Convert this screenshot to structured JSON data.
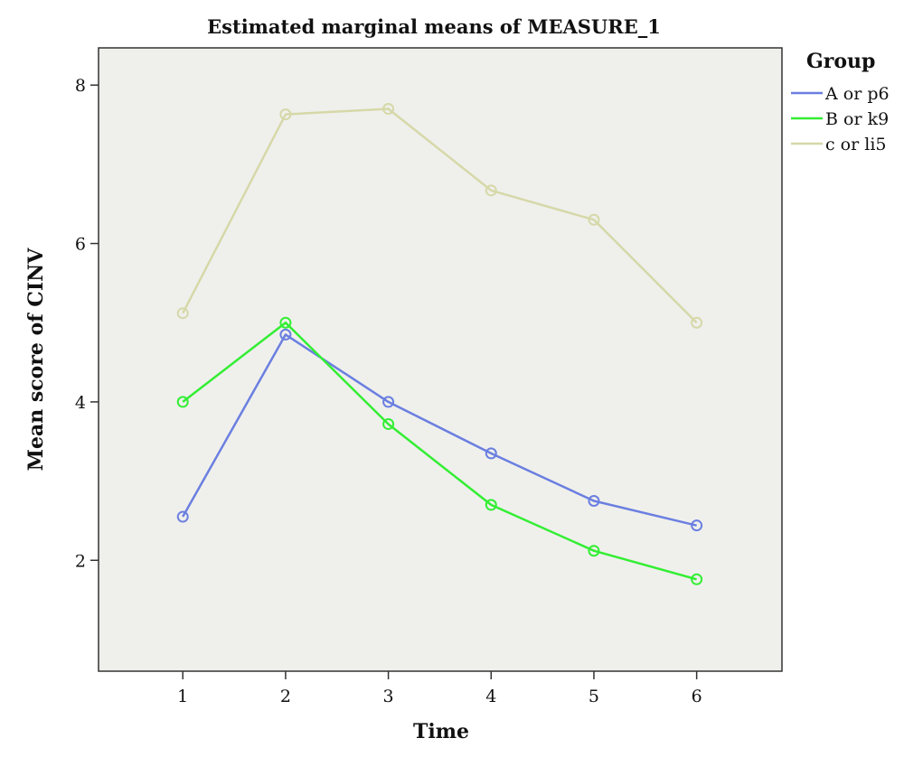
{
  "chart_data": {
    "type": "line",
    "title": "Estimated marginal means of MEASURE_1",
    "xlabel": "Time",
    "ylabel": "Mean score of CINV",
    "x": [
      1,
      2,
      3,
      4,
      5,
      6
    ],
    "xlim": [
      0.18,
      6.83
    ],
    "ylim": [
      0.6,
      8.47
    ],
    "xticks": [
      1,
      2,
      3,
      4,
      5,
      6
    ],
    "yticks": [
      2,
      4,
      6,
      8
    ],
    "grid": false,
    "legend": {
      "title": "Group",
      "position": "right"
    },
    "series": [
      {
        "name": "A or p6",
        "color": "#6b7fe0",
        "values": [
          2.55,
          4.85,
          4.0,
          3.35,
          2.75,
          2.44
        ]
      },
      {
        "name": "B or k9",
        "color": "#33ee33",
        "values": [
          4.0,
          5.0,
          3.72,
          2.7,
          2.12,
          1.76
        ]
      },
      {
        "name": "c or li5",
        "color": "#d6d8a8",
        "values": [
          5.12,
          7.63,
          7.7,
          6.67,
          6.3,
          5.0
        ]
      }
    ]
  }
}
